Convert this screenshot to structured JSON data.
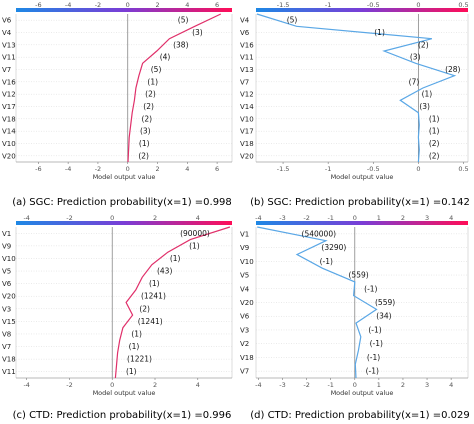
{
  "chart_data": [
    {
      "type": "line",
      "panel": "a",
      "caption": "(a) SGC: Prediction probability(x=1) =0.998",
      "xlabel": "Model output value",
      "xlim": [
        -7.5,
        7.0
      ],
      "xticks": [
        -6,
        -4,
        -2,
        0,
        2,
        4,
        6
      ],
      "base_value": 0.0,
      "line_color": "#e0306a",
      "features": [
        "V6",
        "V4",
        "V13",
        "V11",
        "V7",
        "V16",
        "V12",
        "V17",
        "V18",
        "V14",
        "V10",
        "V20"
      ],
      "feature_labels": [
        "(5)",
        "(3)",
        "(38)",
        "(4)",
        "(5)",
        "(1)",
        "(2)",
        "(2)",
        "(2)",
        "(3)",
        "(1)",
        "(2)"
      ],
      "path": [
        6.25,
        4.5,
        2.8,
        1.95,
        1.0,
        0.75,
        0.55,
        0.45,
        0.3,
        0.2,
        0.1,
        0.06,
        0.02
      ]
    },
    {
      "type": "line",
      "panel": "b",
      "caption": "(b) SGC: Prediction probability(x=1) =0.142",
      "xlabel": "Model output value",
      "xlim": [
        -1.8,
        0.55
      ],
      "xticks": [
        -1.5,
        -1.0,
        -0.5,
        0.0,
        0.5
      ],
      "base_value": 0.0,
      "line_color": "#5aa7e6",
      "features": [
        "V4",
        "V6",
        "V16",
        "V11",
        "V13",
        "V7",
        "V12",
        "V14",
        "V10",
        "V17",
        "V18",
        "V20"
      ],
      "feature_labels": [
        "(5)",
        "(1)",
        "(2)",
        "(3)",
        "(28)",
        "(7)",
        "(1)",
        "(3)",
        "(1)",
        "(1)",
        "(2)",
        "(2)"
      ],
      "path": [
        -1.79,
        -1.35,
        0.15,
        -0.38,
        -0.03,
        0.4,
        0.05,
        -0.2,
        0.0,
        0.01,
        0.0,
        0.01,
        0.0
      ]
    },
    {
      "type": "line",
      "panel": "c",
      "caption": "(c) CTD: Prediction probability(x=1) =0.996",
      "xlabel": "Model output value",
      "xlim": [
        -4.5,
        5.6
      ],
      "xticks": [
        -4,
        -2,
        0,
        2,
        4
      ],
      "base_value": 0.0,
      "line_color": "#e0306a",
      "features": [
        "V1",
        "V9",
        "V10",
        "V5",
        "V6",
        "V20",
        "V3",
        "V15",
        "V8",
        "V7",
        "V18",
        "V11"
      ],
      "feature_labels": [
        "(90000)",
        "(1)",
        "(1)",
        "(43)",
        "(1)",
        "(1241)",
        "(2)",
        "(1241)",
        "(1)",
        "(1)",
        "(1221)",
        "(1)"
      ],
      "path": [
        5.5,
        3.65,
        2.6,
        1.85,
        1.4,
        1.1,
        0.65,
        0.95,
        0.5,
        0.35,
        0.25,
        0.2,
        0.15
      ]
    },
    {
      "type": "line",
      "panel": "d",
      "caption": "(d) CTD: Prediction probability(x=1) =0.029",
      "xlabel": "Model output value",
      "xlim": [
        -4.1,
        4.7
      ],
      "xticks": [
        -4,
        -3,
        -2,
        -1,
        0,
        1,
        2,
        3,
        4
      ],
      "base_value": 0.0,
      "line_color": "#5aa7e6",
      "features": [
        "V1",
        "V9",
        "V10",
        "V5",
        "V4",
        "V20",
        "V6",
        "V3",
        "V2",
        "V18",
        "V7"
      ],
      "feature_labels": [
        "(540000)",
        "(3290)",
        "(-1)",
        "(559)",
        "(-1)",
        "(559)",
        "(34)",
        "(-1)",
        "(-1)",
        "(-1)",
        "(-1)"
      ],
      "path": [
        -4.05,
        -1.2,
        -2.4,
        -1.35,
        0.0,
        -0.05,
        0.9,
        0.05,
        0.25,
        0.15,
        0.02,
        0.05
      ]
    }
  ]
}
